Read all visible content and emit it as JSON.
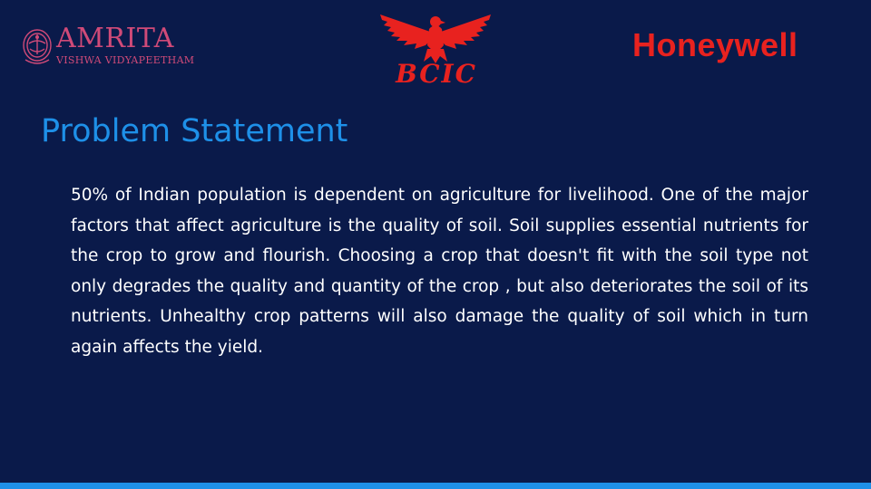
{
  "logos": {
    "amrita": {
      "name": "AMRITA",
      "subtitle": "VISHWA VIDYAPEETHAM",
      "color": "#d04a78"
    },
    "bcic": {
      "name": "BCIC",
      "color": "#e8221f"
    },
    "honeywell": {
      "name": "Honeywell",
      "color": "#e8221f"
    }
  },
  "slide": {
    "title": "Problem Statement",
    "body": "50% of Indian population is dependent on agriculture for livelihood. One of the major factors that affect agriculture is the quality of soil. Soil supplies essential nutrients for the crop to grow and flourish. Choosing a crop that doesn't fit with the soil type not only degrades the quality and quantity of the crop , but also deteriorates the soil of its nutrients. Unhealthy crop patterns will also damage the quality of soil which in turn again affects the yield."
  },
  "colors": {
    "background": "#0a1a4a",
    "title": "#1e90e8",
    "body_text": "#ffffff",
    "accent_bar": "#1e90e8"
  }
}
